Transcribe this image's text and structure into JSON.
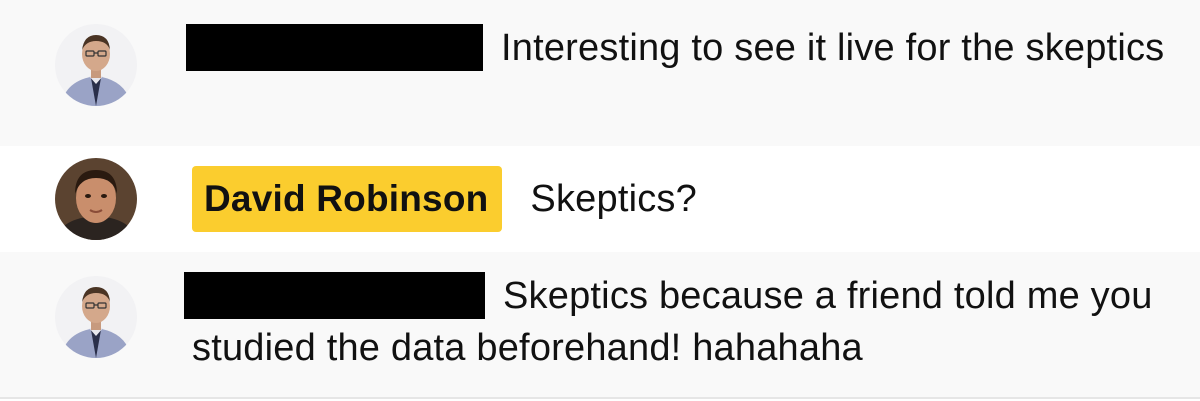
{
  "messages": [
    {
      "author": "",
      "author_redacted": true,
      "text": "Interesting to see it live for the skeptics"
    },
    {
      "author": "David Robinson",
      "author_redacted": false,
      "author_highlight_color": "#fbcd2e",
      "text": "Skeptics?"
    },
    {
      "author": "",
      "author_redacted": true,
      "text": "Skeptics because a friend told me you studied the data beforehand! hahahaha"
    }
  ],
  "colors": {
    "row_alt_background": "#f9f9f9",
    "row_background": "#ffffff",
    "redaction": "#000000",
    "highlight": "#fbcd2e"
  },
  "icons": {
    "avatar_0": "user-photo-avatar-icon",
    "avatar_1": "user-photo-avatar-icon",
    "avatar_2": "user-photo-avatar-icon"
  }
}
